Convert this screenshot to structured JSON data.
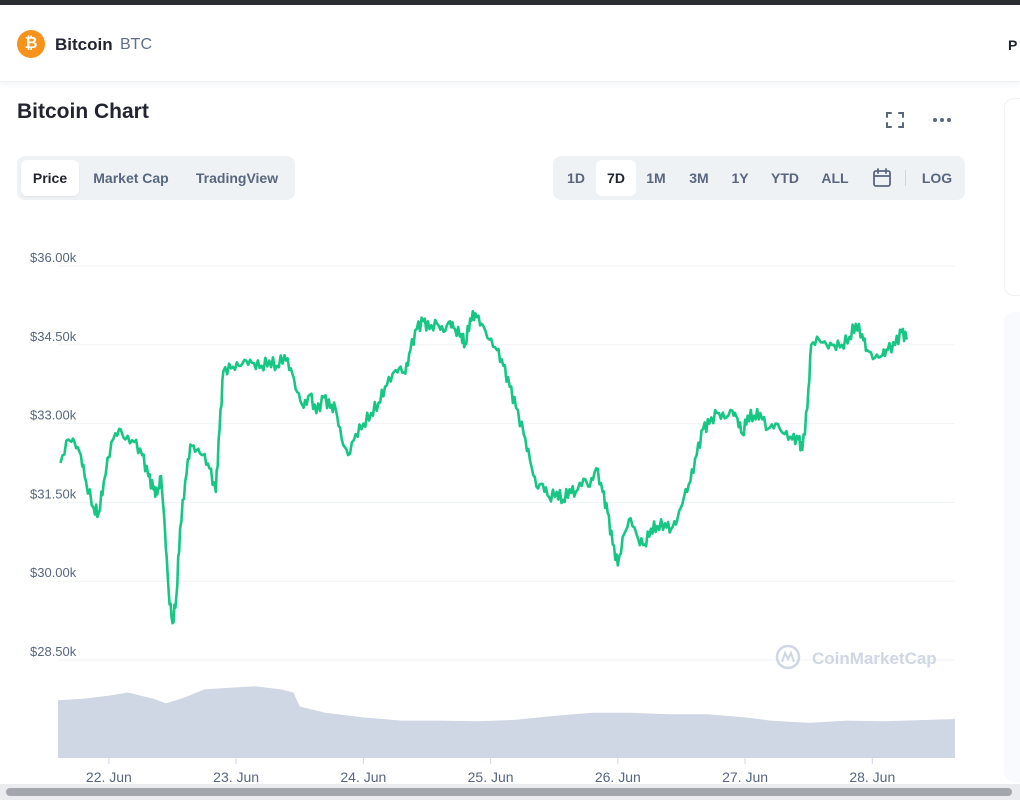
{
  "header": {
    "coin_name": "Bitcoin",
    "coin_symbol": "BTC",
    "coin_icon": "bitcoin-icon",
    "edge_text": "P"
  },
  "chart_title": "Bitcoin Chart",
  "tabs": [
    {
      "label": "Price",
      "active": true
    },
    {
      "label": "Market Cap",
      "active": false
    },
    {
      "label": "TradingView",
      "active": false
    }
  ],
  "ranges": [
    {
      "label": "1D",
      "active": false
    },
    {
      "label": "7D",
      "active": true
    },
    {
      "label": "1M",
      "active": false
    },
    {
      "label": "3M",
      "active": false
    },
    {
      "label": "1Y",
      "active": false
    },
    {
      "label": "YTD",
      "active": false
    },
    {
      "label": "ALL",
      "active": false
    }
  ],
  "log_label": "LOG",
  "watermark": "CoinMarketCap",
  "colors": {
    "line": "#16c784",
    "volume": "#cfd6e4",
    "grid": "#eff2f5",
    "accent": "#f7931a"
  },
  "chart_data": {
    "type": "line",
    "y_ticks": [
      {
        "value": 36000,
        "label": "$36.00k"
      },
      {
        "value": 34500,
        "label": "$34.50k"
      },
      {
        "value": 33000,
        "label": "$33.00k"
      },
      {
        "value": 31500,
        "label": "$31.50k"
      },
      {
        "value": 30000,
        "label": "$30.00k"
      },
      {
        "value": 28500,
        "label": "$28.50k"
      }
    ],
    "x_ticks": [
      {
        "value": 0,
        "label": "22. Jun"
      },
      {
        "value": 1,
        "label": "23. Jun"
      },
      {
        "value": 2,
        "label": "24. Jun"
      },
      {
        "value": 3,
        "label": "25. Jun"
      },
      {
        "value": 4,
        "label": "26. Jun"
      },
      {
        "value": 5,
        "label": "27. Jun"
      },
      {
        "value": 6,
        "label": "28. Jun"
      }
    ],
    "ylim": [
      28000,
      36200
    ],
    "xlim": [
      -0.4,
      6.65
    ],
    "grid": true,
    "series": [
      {
        "points": [
          [
            -0.38,
            32250
          ],
          [
            -0.32,
            32700
          ],
          [
            -0.27,
            32650
          ],
          [
            -0.22,
            32400
          ],
          [
            -0.18,
            31900
          ],
          [
            -0.12,
            31400
          ],
          [
            -0.08,
            31300
          ],
          [
            -0.04,
            31900
          ],
          [
            0.02,
            32650
          ],
          [
            0.08,
            32900
          ],
          [
            0.13,
            32700
          ],
          [
            0.2,
            32650
          ],
          [
            0.26,
            32400
          ],
          [
            0.31,
            32000
          ],
          [
            0.35,
            31750
          ],
          [
            0.38,
            31650
          ],
          [
            0.41,
            32000
          ],
          [
            0.44,
            31000
          ],
          [
            0.47,
            29800
          ],
          [
            0.5,
            29200
          ],
          [
            0.53,
            29700
          ],
          [
            0.56,
            31000
          ],
          [
            0.6,
            31900
          ],
          [
            0.64,
            32600
          ],
          [
            0.69,
            32500
          ],
          [
            0.74,
            32400
          ],
          [
            0.79,
            32150
          ],
          [
            0.84,
            31700
          ],
          [
            0.87,
            32900
          ],
          [
            0.9,
            34000
          ],
          [
            0.96,
            34050
          ],
          [
            1.02,
            34100
          ],
          [
            1.08,
            34200
          ],
          [
            1.14,
            34150
          ],
          [
            1.2,
            34100
          ],
          [
            1.26,
            34200
          ],
          [
            1.32,
            34100
          ],
          [
            1.38,
            34300
          ],
          [
            1.43,
            34050
          ],
          [
            1.48,
            33600
          ],
          [
            1.53,
            33300
          ],
          [
            1.58,
            33550
          ],
          [
            1.63,
            33200
          ],
          [
            1.69,
            33500
          ],
          [
            1.74,
            33300
          ],
          [
            1.78,
            33300
          ],
          [
            1.83,
            32700
          ],
          [
            1.88,
            32400
          ],
          [
            1.94,
            32800
          ],
          [
            2.0,
            33000
          ],
          [
            2.06,
            33200
          ],
          [
            2.12,
            33400
          ],
          [
            2.17,
            33700
          ],
          [
            2.23,
            33950
          ],
          [
            2.28,
            34050
          ],
          [
            2.33,
            33950
          ],
          [
            2.37,
            34400
          ],
          [
            2.42,
            34800
          ],
          [
            2.47,
            34950
          ],
          [
            2.52,
            34800
          ],
          [
            2.58,
            34900
          ],
          [
            2.63,
            34750
          ],
          [
            2.68,
            34950
          ],
          [
            2.72,
            34800
          ],
          [
            2.77,
            34700
          ],
          [
            2.8,
            34500
          ],
          [
            2.84,
            35000
          ],
          [
            2.88,
            35100
          ],
          [
            2.93,
            34900
          ],
          [
            2.99,
            34600
          ],
          [
            3.05,
            34400
          ],
          [
            3.1,
            34100
          ],
          [
            3.15,
            33700
          ],
          [
            3.2,
            33300
          ],
          [
            3.26,
            32800
          ],
          [
            3.31,
            32300
          ],
          [
            3.36,
            31800
          ],
          [
            3.41,
            31850
          ],
          [
            3.46,
            31600
          ],
          [
            3.52,
            31700
          ],
          [
            3.57,
            31550
          ],
          [
            3.62,
            31750
          ],
          [
            3.67,
            31700
          ],
          [
            3.73,
            31950
          ],
          [
            3.78,
            31800
          ],
          [
            3.83,
            32150
          ],
          [
            3.88,
            31700
          ],
          [
            3.92,
            31300
          ],
          [
            3.96,
            30700
          ],
          [
            4.0,
            30300
          ],
          [
            4.05,
            30900
          ],
          [
            4.1,
            31200
          ],
          [
            4.16,
            30800
          ],
          [
            4.21,
            30700
          ],
          [
            4.26,
            31000
          ],
          [
            4.31,
            31050
          ],
          [
            4.37,
            31100
          ],
          [
            4.42,
            31000
          ],
          [
            4.47,
            31200
          ],
          [
            4.52,
            31600
          ],
          [
            4.57,
            31900
          ],
          [
            4.62,
            32400
          ],
          [
            4.67,
            32900
          ],
          [
            4.72,
            33000
          ],
          [
            4.78,
            33200
          ],
          [
            4.84,
            33100
          ],
          [
            4.9,
            33250
          ],
          [
            4.94,
            33100
          ],
          [
            4.98,
            32800
          ],
          [
            5.02,
            33150
          ],
          [
            5.07,
            33150
          ],
          [
            5.12,
            33200
          ],
          [
            5.18,
            32900
          ],
          [
            5.24,
            33000
          ],
          [
            5.31,
            32800
          ],
          [
            5.37,
            32700
          ],
          [
            5.42,
            32700
          ],
          [
            5.45,
            32500
          ],
          [
            5.49,
            33300
          ],
          [
            5.52,
            34500
          ],
          [
            5.58,
            34600
          ],
          [
            5.64,
            34500
          ],
          [
            5.7,
            34500
          ],
          [
            5.76,
            34500
          ],
          [
            5.82,
            34650
          ],
          [
            5.87,
            34900
          ],
          [
            5.92,
            34700
          ],
          [
            5.96,
            34400
          ],
          [
            6.02,
            34250
          ],
          [
            6.08,
            34300
          ],
          [
            6.12,
            34400
          ],
          [
            6.18,
            34500
          ],
          [
            6.23,
            34750
          ],
          [
            6.27,
            34600
          ]
        ]
      },
      {
        "name": "volume",
        "points": [
          [
            -0.4,
            0.74
          ],
          [
            -0.2,
            0.76
          ],
          [
            0.0,
            0.8
          ],
          [
            0.15,
            0.84
          ],
          [
            0.35,
            0.76
          ],
          [
            0.45,
            0.7
          ],
          [
            0.6,
            0.78
          ],
          [
            0.75,
            0.88
          ],
          [
            0.95,
            0.9
          ],
          [
            1.15,
            0.92
          ],
          [
            1.35,
            0.88
          ],
          [
            1.45,
            0.84
          ],
          [
            1.5,
            0.66
          ],
          [
            1.7,
            0.58
          ],
          [
            2.0,
            0.52
          ],
          [
            2.3,
            0.48
          ],
          [
            2.6,
            0.48
          ],
          [
            2.9,
            0.47
          ],
          [
            3.2,
            0.49
          ],
          [
            3.5,
            0.54
          ],
          [
            3.8,
            0.58
          ],
          [
            4.1,
            0.58
          ],
          [
            4.4,
            0.56
          ],
          [
            4.7,
            0.56
          ],
          [
            5.0,
            0.52
          ],
          [
            5.2,
            0.48
          ],
          [
            5.5,
            0.45
          ],
          [
            5.8,
            0.48
          ],
          [
            6.1,
            0.47
          ],
          [
            6.65,
            0.5
          ]
        ]
      }
    ]
  }
}
